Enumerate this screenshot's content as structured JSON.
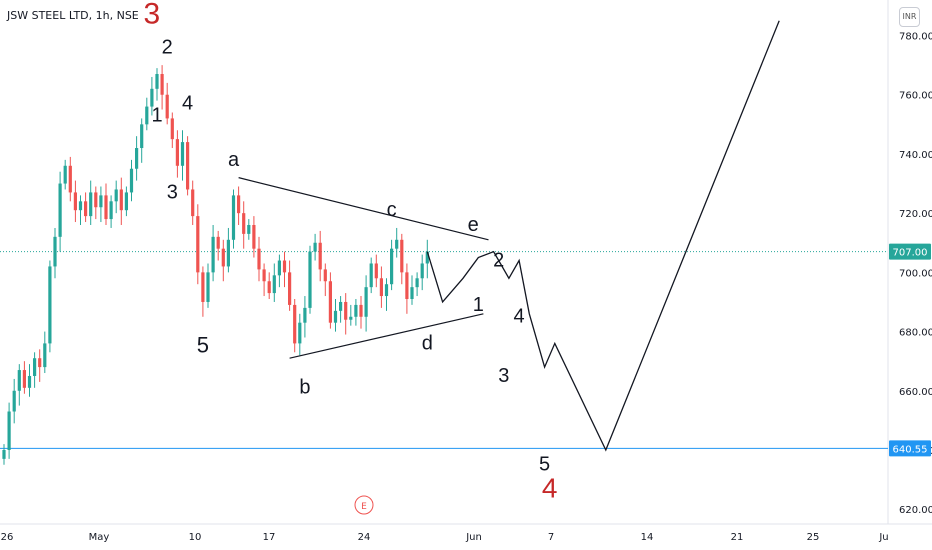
{
  "title": "JSW STEEL LTD, 1h, NSE",
  "currency": "INR",
  "event_marker": "E",
  "colors": {
    "up": "#26a69a",
    "down": "#ef5350",
    "hline": "#2196f3",
    "dotted": "#26a69a",
    "red": "#c62828"
  },
  "chart_data": {
    "type": "candlestick",
    "ylim": [
      615,
      792
    ],
    "grid": false,
    "y_ticks": [
      "620.00",
      "640.00",
      "660.00",
      "680.00",
      "700.00",
      "720.00",
      "740.00",
      "760.00",
      "780.00"
    ],
    "x_ticks": [
      "26",
      "May",
      "10",
      "17",
      "24",
      "Jun",
      "7",
      "14",
      "21",
      "25",
      "Ju"
    ],
    "price_labels": [
      {
        "value": 707.0,
        "text": "707.00",
        "style": "dotted"
      },
      {
        "value": 640.55,
        "text": "640.55",
        "style": "line"
      }
    ],
    "candles_close_path": [
      [
        0,
        640
      ],
      [
        1,
        653
      ],
      [
        2,
        660
      ],
      [
        3,
        667
      ],
      [
        4,
        661
      ],
      [
        5,
        665
      ],
      [
        6,
        671
      ],
      [
        7,
        668
      ],
      [
        8,
        676
      ],
      [
        9,
        702
      ],
      [
        10,
        712
      ],
      [
        11,
        730
      ],
      [
        12,
        736
      ],
      [
        13,
        727
      ],
      [
        14,
        721
      ],
      [
        15,
        724
      ],
      [
        16,
        719
      ],
      [
        17,
        727
      ],
      [
        18,
        722
      ],
      [
        19,
        726
      ],
      [
        20,
        718
      ],
      [
        21,
        724
      ],
      [
        22,
        728
      ],
      [
        23,
        721
      ],
      [
        24,
        727
      ],
      [
        25,
        735
      ],
      [
        26,
        742
      ],
      [
        27,
        750
      ],
      [
        28,
        756
      ],
      [
        29,
        762
      ],
      [
        30,
        767
      ],
      [
        31,
        760
      ],
      [
        32,
        752
      ],
      [
        33,
        745
      ],
      [
        34,
        736
      ],
      [
        35,
        744
      ],
      [
        36,
        728
      ],
      [
        37,
        719
      ],
      [
        38,
        700
      ],
      [
        39,
        690
      ],
      [
        40,
        700
      ],
      [
        41,
        712
      ],
      [
        42,
        708
      ],
      [
        43,
        702
      ],
      [
        44,
        711
      ],
      [
        45,
        726
      ],
      [
        46,
        720
      ],
      [
        47,
        713
      ],
      [
        48,
        716
      ],
      [
        49,
        708
      ],
      [
        50,
        701
      ],
      [
        51,
        697
      ],
      [
        52,
        693
      ],
      [
        53,
        699
      ],
      [
        54,
        704
      ],
      [
        55,
        700
      ],
      [
        56,
        689
      ],
      [
        57,
        676
      ],
      [
        58,
        683
      ],
      [
        59,
        688
      ],
      [
        60,
        707
      ],
      [
        61,
        710
      ],
      [
        62,
        701
      ],
      [
        63,
        697
      ],
      [
        64,
        683
      ],
      [
        65,
        687
      ],
      [
        66,
        690
      ],
      [
        67,
        684
      ],
      [
        68,
        685
      ],
      [
        69,
        689
      ],
      [
        70,
        685
      ],
      [
        71,
        695
      ],
      [
        72,
        703
      ],
      [
        73,
        698
      ],
      [
        74,
        692
      ],
      [
        75,
        696
      ],
      [
        76,
        708
      ],
      [
        77,
        711
      ],
      [
        78,
        700
      ],
      [
        79,
        691
      ],
      [
        80,
        695
      ],
      [
        81,
        698
      ],
      [
        82,
        703
      ],
      [
        83,
        707
      ]
    ],
    "wave_path": [
      [
        83,
        707
      ],
      [
        86,
        690
      ],
      [
        90,
        698
      ],
      [
        93,
        705
      ],
      [
        96,
        707
      ],
      [
        99,
        698
      ],
      [
        101,
        704
      ],
      [
        103,
        686
      ],
      [
        106,
        668
      ],
      [
        108,
        676
      ],
      [
        118,
        640
      ],
      [
        152,
        785
      ]
    ],
    "trend_lines": [
      {
        "name": "upper-abce",
        "points": [
          [
            46,
            732
          ],
          [
            95,
            711
          ]
        ]
      },
      {
        "name": "lower-bd1",
        "points": [
          [
            56,
            671
          ],
          [
            94,
            686
          ]
        ]
      }
    ],
    "annotations": [
      {
        "text": "3",
        "color": "red",
        "x": 29,
        "y": 784,
        "size": 30
      },
      {
        "text": "2",
        "color": "black",
        "x": 32,
        "y": 774,
        "size": 20
      },
      {
        "text": "1",
        "color": "black",
        "x": 30,
        "y": 751,
        "size": 20
      },
      {
        "text": "4",
        "color": "black",
        "x": 36,
        "y": 755,
        "size": 20
      },
      {
        "text": "3",
        "color": "black",
        "x": 33,
        "y": 725,
        "size": 20
      },
      {
        "text": "5",
        "color": "black",
        "x": 39,
        "y": 673,
        "size": 22
      },
      {
        "text": "a",
        "color": "black",
        "x": 45,
        "y": 736,
        "size": 20
      },
      {
        "text": "b",
        "color": "black",
        "x": 59,
        "y": 659,
        "size": 20
      },
      {
        "text": "c",
        "color": "black",
        "x": 76,
        "y": 719,
        "size": 20
      },
      {
        "text": "d",
        "color": "black",
        "x": 83,
        "y": 674,
        "size": 20
      },
      {
        "text": "e",
        "color": "black",
        "x": 92,
        "y": 714,
        "size": 20
      },
      {
        "text": "1",
        "color": "black",
        "x": 93,
        "y": 687,
        "size": 20
      },
      {
        "text": "2",
        "color": "black",
        "x": 97,
        "y": 702,
        "size": 20
      },
      {
        "text": "3",
        "color": "black",
        "x": 98,
        "y": 663,
        "size": 20
      },
      {
        "text": "4",
        "color": "black",
        "x": 101,
        "y": 683,
        "size": 20
      },
      {
        "text": "5",
        "color": "black",
        "x": 106,
        "y": 633,
        "size": 20
      },
      {
        "text": "4",
        "color": "red",
        "x": 107,
        "y": 624,
        "size": 28
      }
    ]
  }
}
